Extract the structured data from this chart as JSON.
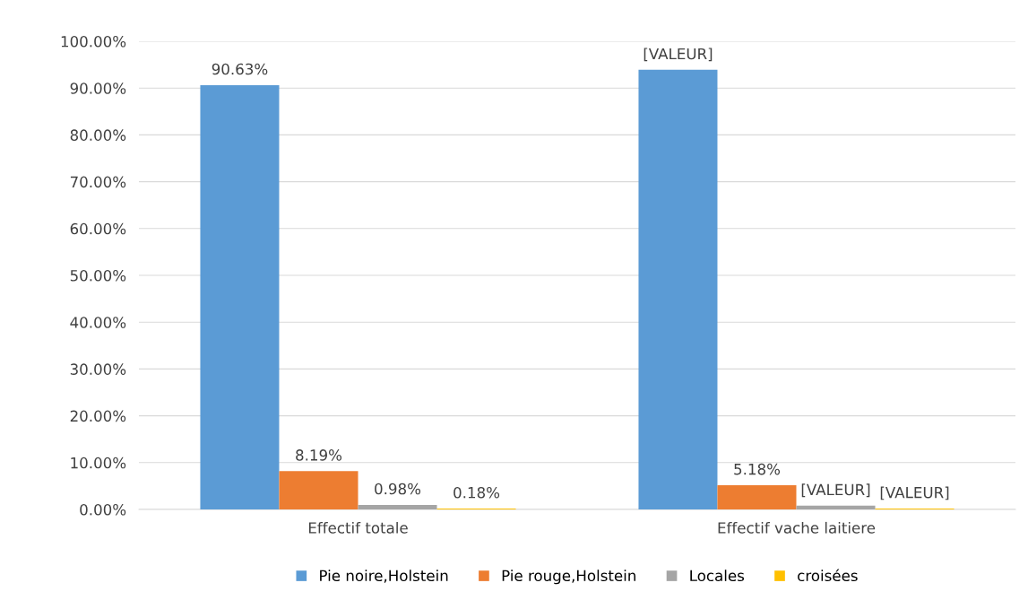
{
  "chart_data": {
    "type": "bar",
    "categories": [
      "Effectif totale",
      "Effectif vache laitiere"
    ],
    "series": [
      {
        "name": "Pie noire,Holstein",
        "color": "#5b9bd5",
        "values": [
          90.63,
          93.9
        ],
        "value_labels": [
          "90.63%",
          "[VALEUR]"
        ]
      },
      {
        "name": "Pie rouge,Holstein",
        "color": "#ed7d31",
        "values": [
          8.19,
          5.18
        ],
        "value_labels": [
          "8.19%",
          "5.18%"
        ]
      },
      {
        "name": "Locales",
        "color": "#a5a5a5",
        "values": [
          0.98,
          0.8
        ],
        "value_labels": [
          "0.98%",
          "[VALEUR]"
        ]
      },
      {
        "name": "croisées",
        "color": "#ffc000",
        "values": [
          0.18,
          0.2
        ],
        "value_labels": [
          "0.18%",
          "[VALEUR]"
        ]
      }
    ],
    "ylim": [
      0,
      100
    ],
    "yticks": [
      {
        "value": 0,
        "label": "0.00%"
      },
      {
        "value": 10,
        "label": "10.00%"
      },
      {
        "value": 20,
        "label": "20.00%"
      },
      {
        "value": 30,
        "label": "30.00%"
      },
      {
        "value": 40,
        "label": "40.00%"
      },
      {
        "value": 50,
        "label": "50.00%"
      },
      {
        "value": 60,
        "label": "60.00%"
      },
      {
        "value": 70,
        "label": "70.00%"
      },
      {
        "value": 80,
        "label": "80.00%"
      },
      {
        "value": 90,
        "label": "90.00%"
      },
      {
        "value": 100,
        "label": "100.00%"
      }
    ],
    "grid": "y",
    "legend": "bottom"
  }
}
